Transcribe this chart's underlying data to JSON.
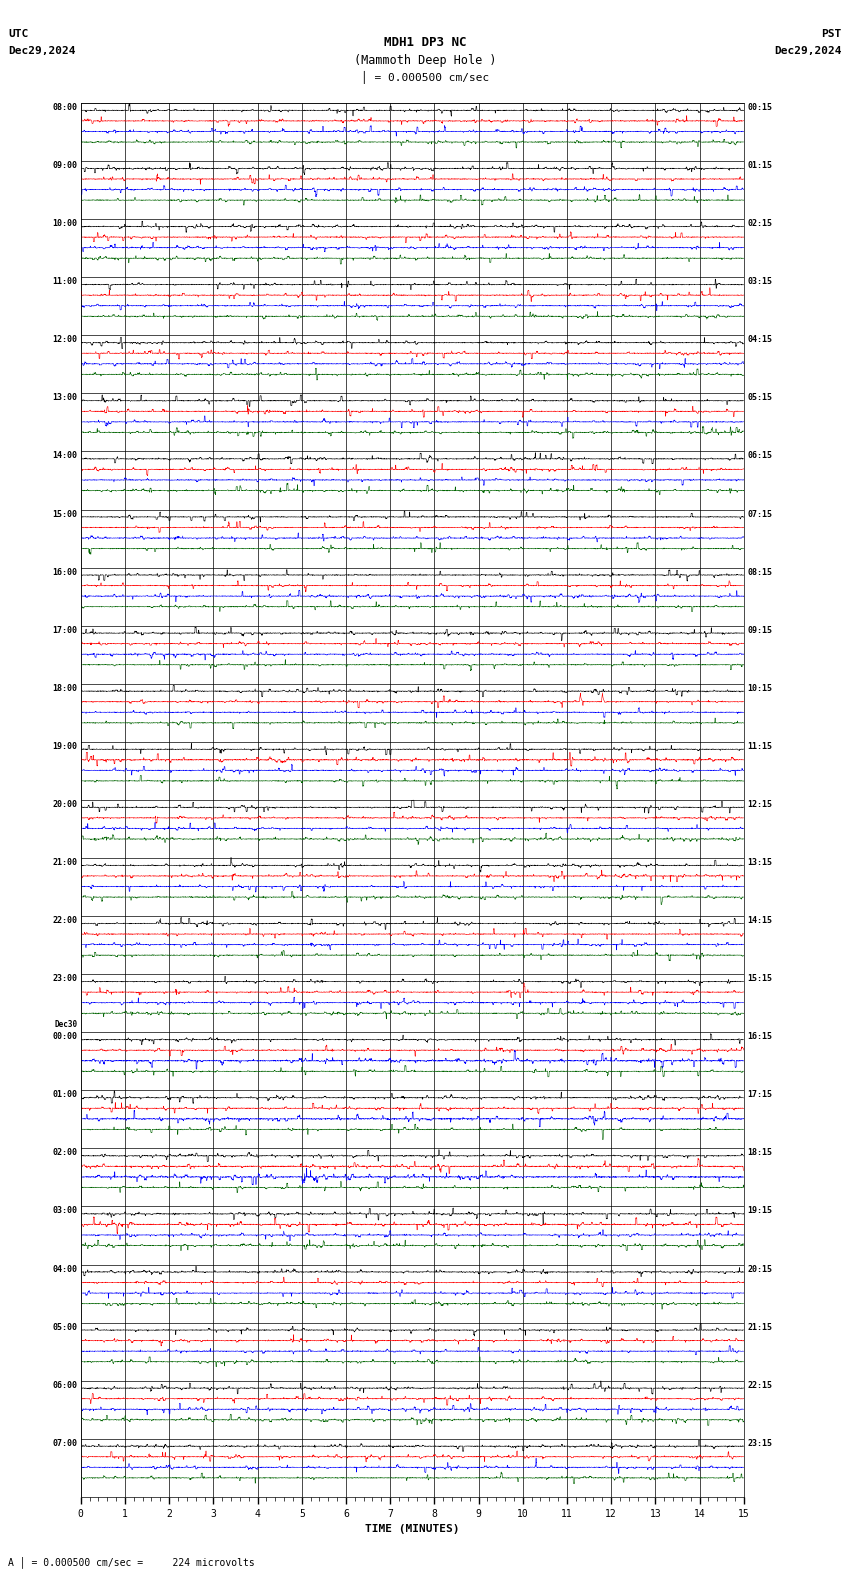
{
  "title_line1": "MDH1 DP3 NC",
  "title_line2": "(Mammoth Deep Hole )",
  "scale_text": "= 0.000500 cm/sec",
  "left_label1": "UTC",
  "left_label2": "Dec29,2024",
  "right_label1": "PST",
  "right_label2": "Dec29,2024",
  "bottom_label": "TIME (MINUTES)",
  "footer_text": "= 0.000500 cm/sec =     224 microvolts",
  "utc_times": [
    "08:00",
    "09:00",
    "10:00",
    "11:00",
    "12:00",
    "13:00",
    "14:00",
    "15:00",
    "16:00",
    "17:00",
    "18:00",
    "19:00",
    "20:00",
    "21:00",
    "22:00",
    "23:00",
    "Dec30\n00:00",
    "01:00",
    "02:00",
    "03:00",
    "04:00",
    "05:00",
    "06:00",
    "07:00"
  ],
  "pst_times": [
    "00:15",
    "01:15",
    "02:15",
    "03:15",
    "04:15",
    "05:15",
    "06:15",
    "07:15",
    "08:15",
    "09:15",
    "10:15",
    "11:15",
    "12:15",
    "13:15",
    "14:15",
    "15:15",
    "16:15",
    "17:15",
    "18:15",
    "19:15",
    "20:15",
    "21:15",
    "22:15",
    "23:15"
  ],
  "n_rows": 24,
  "n_traces_per_row": 4,
  "minutes_per_row": 15,
  "bg_color": "#ffffff",
  "trace_colors": [
    "#000000",
    "#ff0000",
    "#0000ff",
    "#006400"
  ],
  "grid_color": "#000000"
}
